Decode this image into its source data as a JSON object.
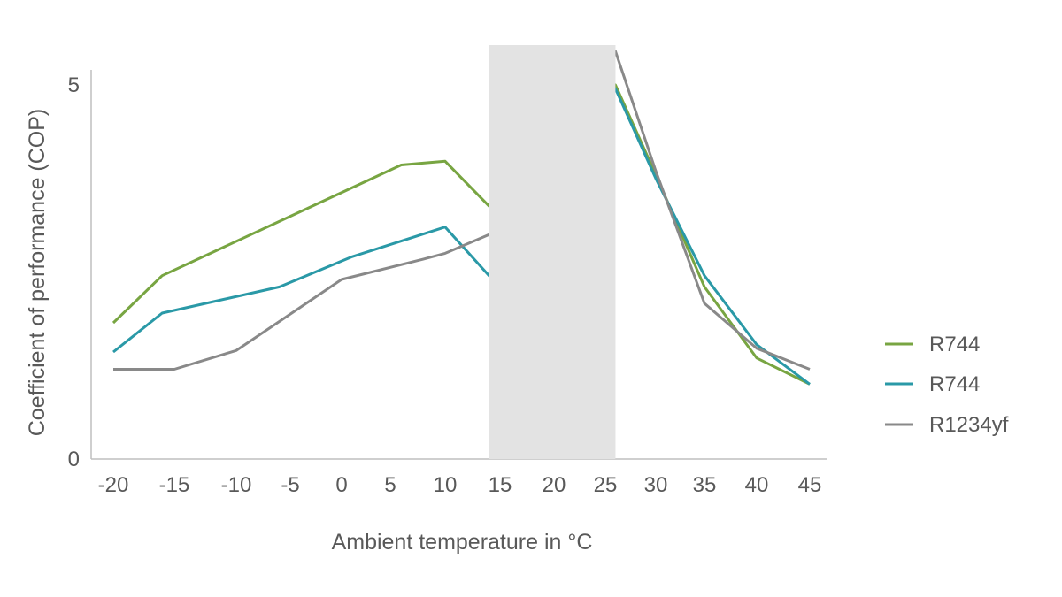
{
  "chart_data": {
    "type": "line",
    "title": "",
    "xlabel": "Ambient temperature in °C",
    "ylabel": "Coefficient of performance (COP)",
    "x_ticks": [
      "-20",
      "-15",
      "-10",
      "-5",
      "0",
      "5",
      "10",
      "15",
      "20",
      "25",
      "30",
      "35",
      "40",
      "45"
    ],
    "y_ticks": [
      "0",
      "5"
    ],
    "xlim": [
      -22,
      46
    ],
    "ylim": [
      0,
      5
    ],
    "shaded_region": {
      "x_start": 14,
      "x_end": 26,
      "color": "#e3e3e3"
    },
    "legend_position": "right",
    "grid": false,
    "series": [
      {
        "name": "R744",
        "color": "#78a542",
        "points": [
          [
            -20,
            1.82
          ],
          [
            -16,
            2.45
          ],
          [
            6,
            3.93
          ],
          [
            10,
            3.98
          ],
          [
            14,
            3.38
          ],
          [
            26,
            5.0
          ],
          [
            30,
            3.8
          ],
          [
            35,
            2.3
          ],
          [
            40,
            1.35
          ],
          [
            45,
            1.0
          ]
        ]
      },
      {
        "name": "R744",
        "color": "#2a99a7",
        "points": [
          [
            -20,
            1.43
          ],
          [
            -16,
            1.95
          ],
          [
            -6,
            2.3
          ],
          [
            1,
            2.7
          ],
          [
            10,
            3.1
          ],
          [
            14,
            2.45
          ],
          [
            26,
            4.95
          ],
          [
            30,
            3.75
          ],
          [
            35,
            2.45
          ],
          [
            40,
            1.53
          ],
          [
            45,
            1.0
          ]
        ]
      },
      {
        "name": "R1234yf",
        "color": "#898989",
        "points": [
          [
            -20,
            1.2
          ],
          [
            -15,
            1.2
          ],
          [
            -10,
            1.45
          ],
          [
            0,
            2.4
          ],
          [
            8,
            2.67
          ],
          [
            10,
            2.75
          ],
          [
            14,
            3.0
          ],
          [
            26,
            5.45
          ],
          [
            30,
            3.85
          ],
          [
            35,
            2.08
          ],
          [
            40,
            1.48
          ],
          [
            45,
            1.2
          ]
        ]
      }
    ]
  }
}
